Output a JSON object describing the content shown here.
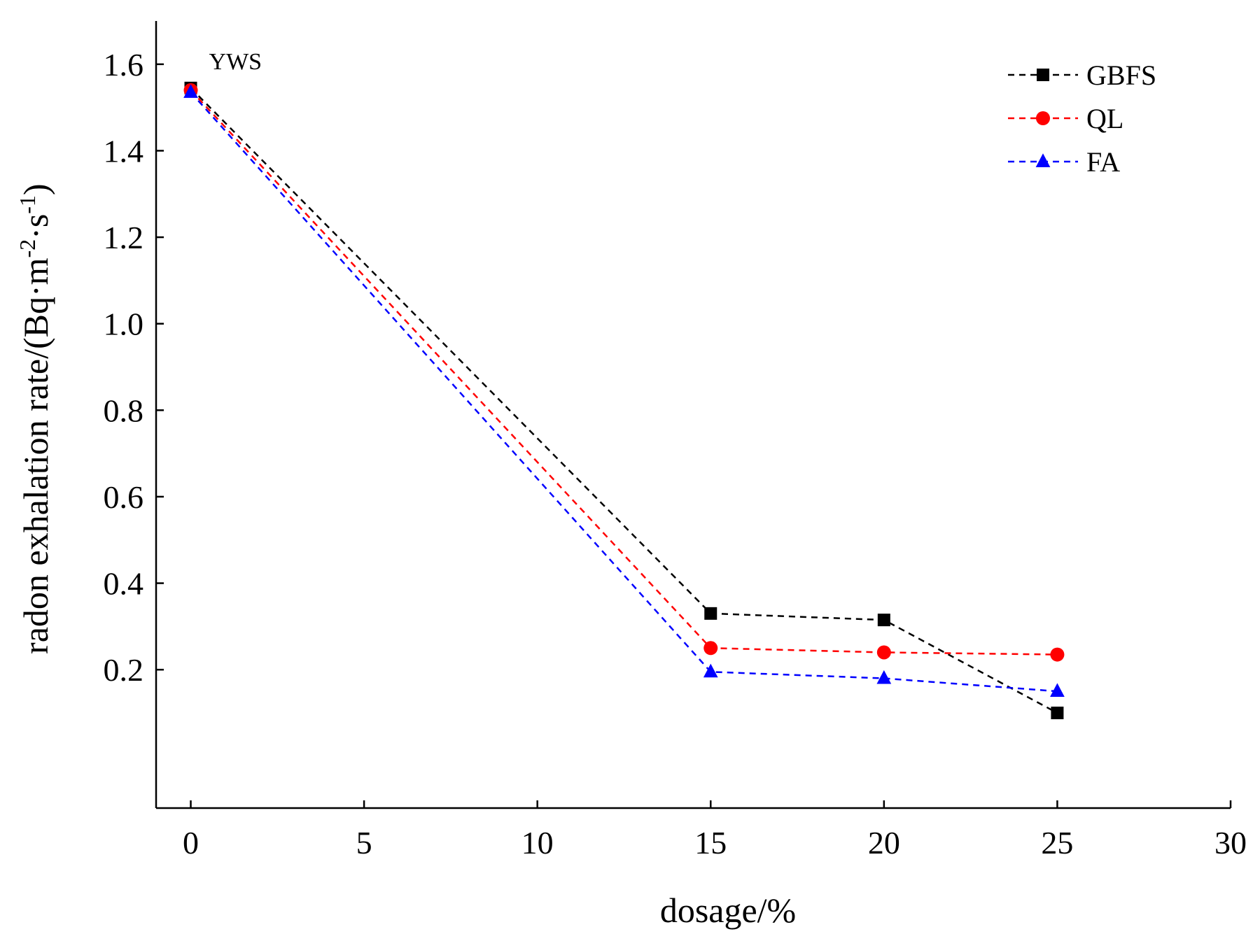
{
  "chart_data": {
    "type": "line",
    "title": "",
    "xlabel": "dosage/%",
    "ylabel_main": "radon exhalation rate/(Bq·m",
    "ylabel_sup1": "-2",
    "ylabel_mid": "·s",
    "ylabel_sup2": "-1",
    "ylabel_end": ")",
    "xlim": [
      -1,
      30
    ],
    "ylim": [
      -0.12,
      1.7
    ],
    "xticks": [
      0,
      5,
      10,
      15,
      20,
      25,
      30
    ],
    "xtick_labels": [
      "0",
      "5",
      "10",
      "15",
      "20",
      "25",
      "30"
    ],
    "yticks": [
      0.2,
      0.4,
      0.6,
      0.8,
      1.0,
      1.2,
      1.4,
      1.6
    ],
    "ytick_labels": [
      "0.2",
      "0.4",
      "0.6",
      "0.8",
      "1.0",
      "1.2",
      "1.4",
      "1.6"
    ],
    "legend_position": "top-right",
    "annotation": "YWS",
    "annotation_at": {
      "x": 0,
      "y": 1.54
    },
    "series": [
      {
        "name": "GBFS",
        "color": "#000000",
        "marker": "square",
        "x": [
          0,
          15,
          20,
          25
        ],
        "values": [
          1.545,
          0.33,
          0.315,
          0.1
        ]
      },
      {
        "name": "QL",
        "color": "#ff0000",
        "marker": "circle",
        "x": [
          0,
          15,
          20,
          25
        ],
        "values": [
          1.54,
          0.25,
          0.24,
          0.235
        ]
      },
      {
        "name": "FA",
        "color": "#0000ff",
        "marker": "triangle",
        "x": [
          0,
          15,
          20,
          25
        ],
        "values": [
          1.535,
          0.195,
          0.18,
          0.15
        ]
      }
    ]
  }
}
